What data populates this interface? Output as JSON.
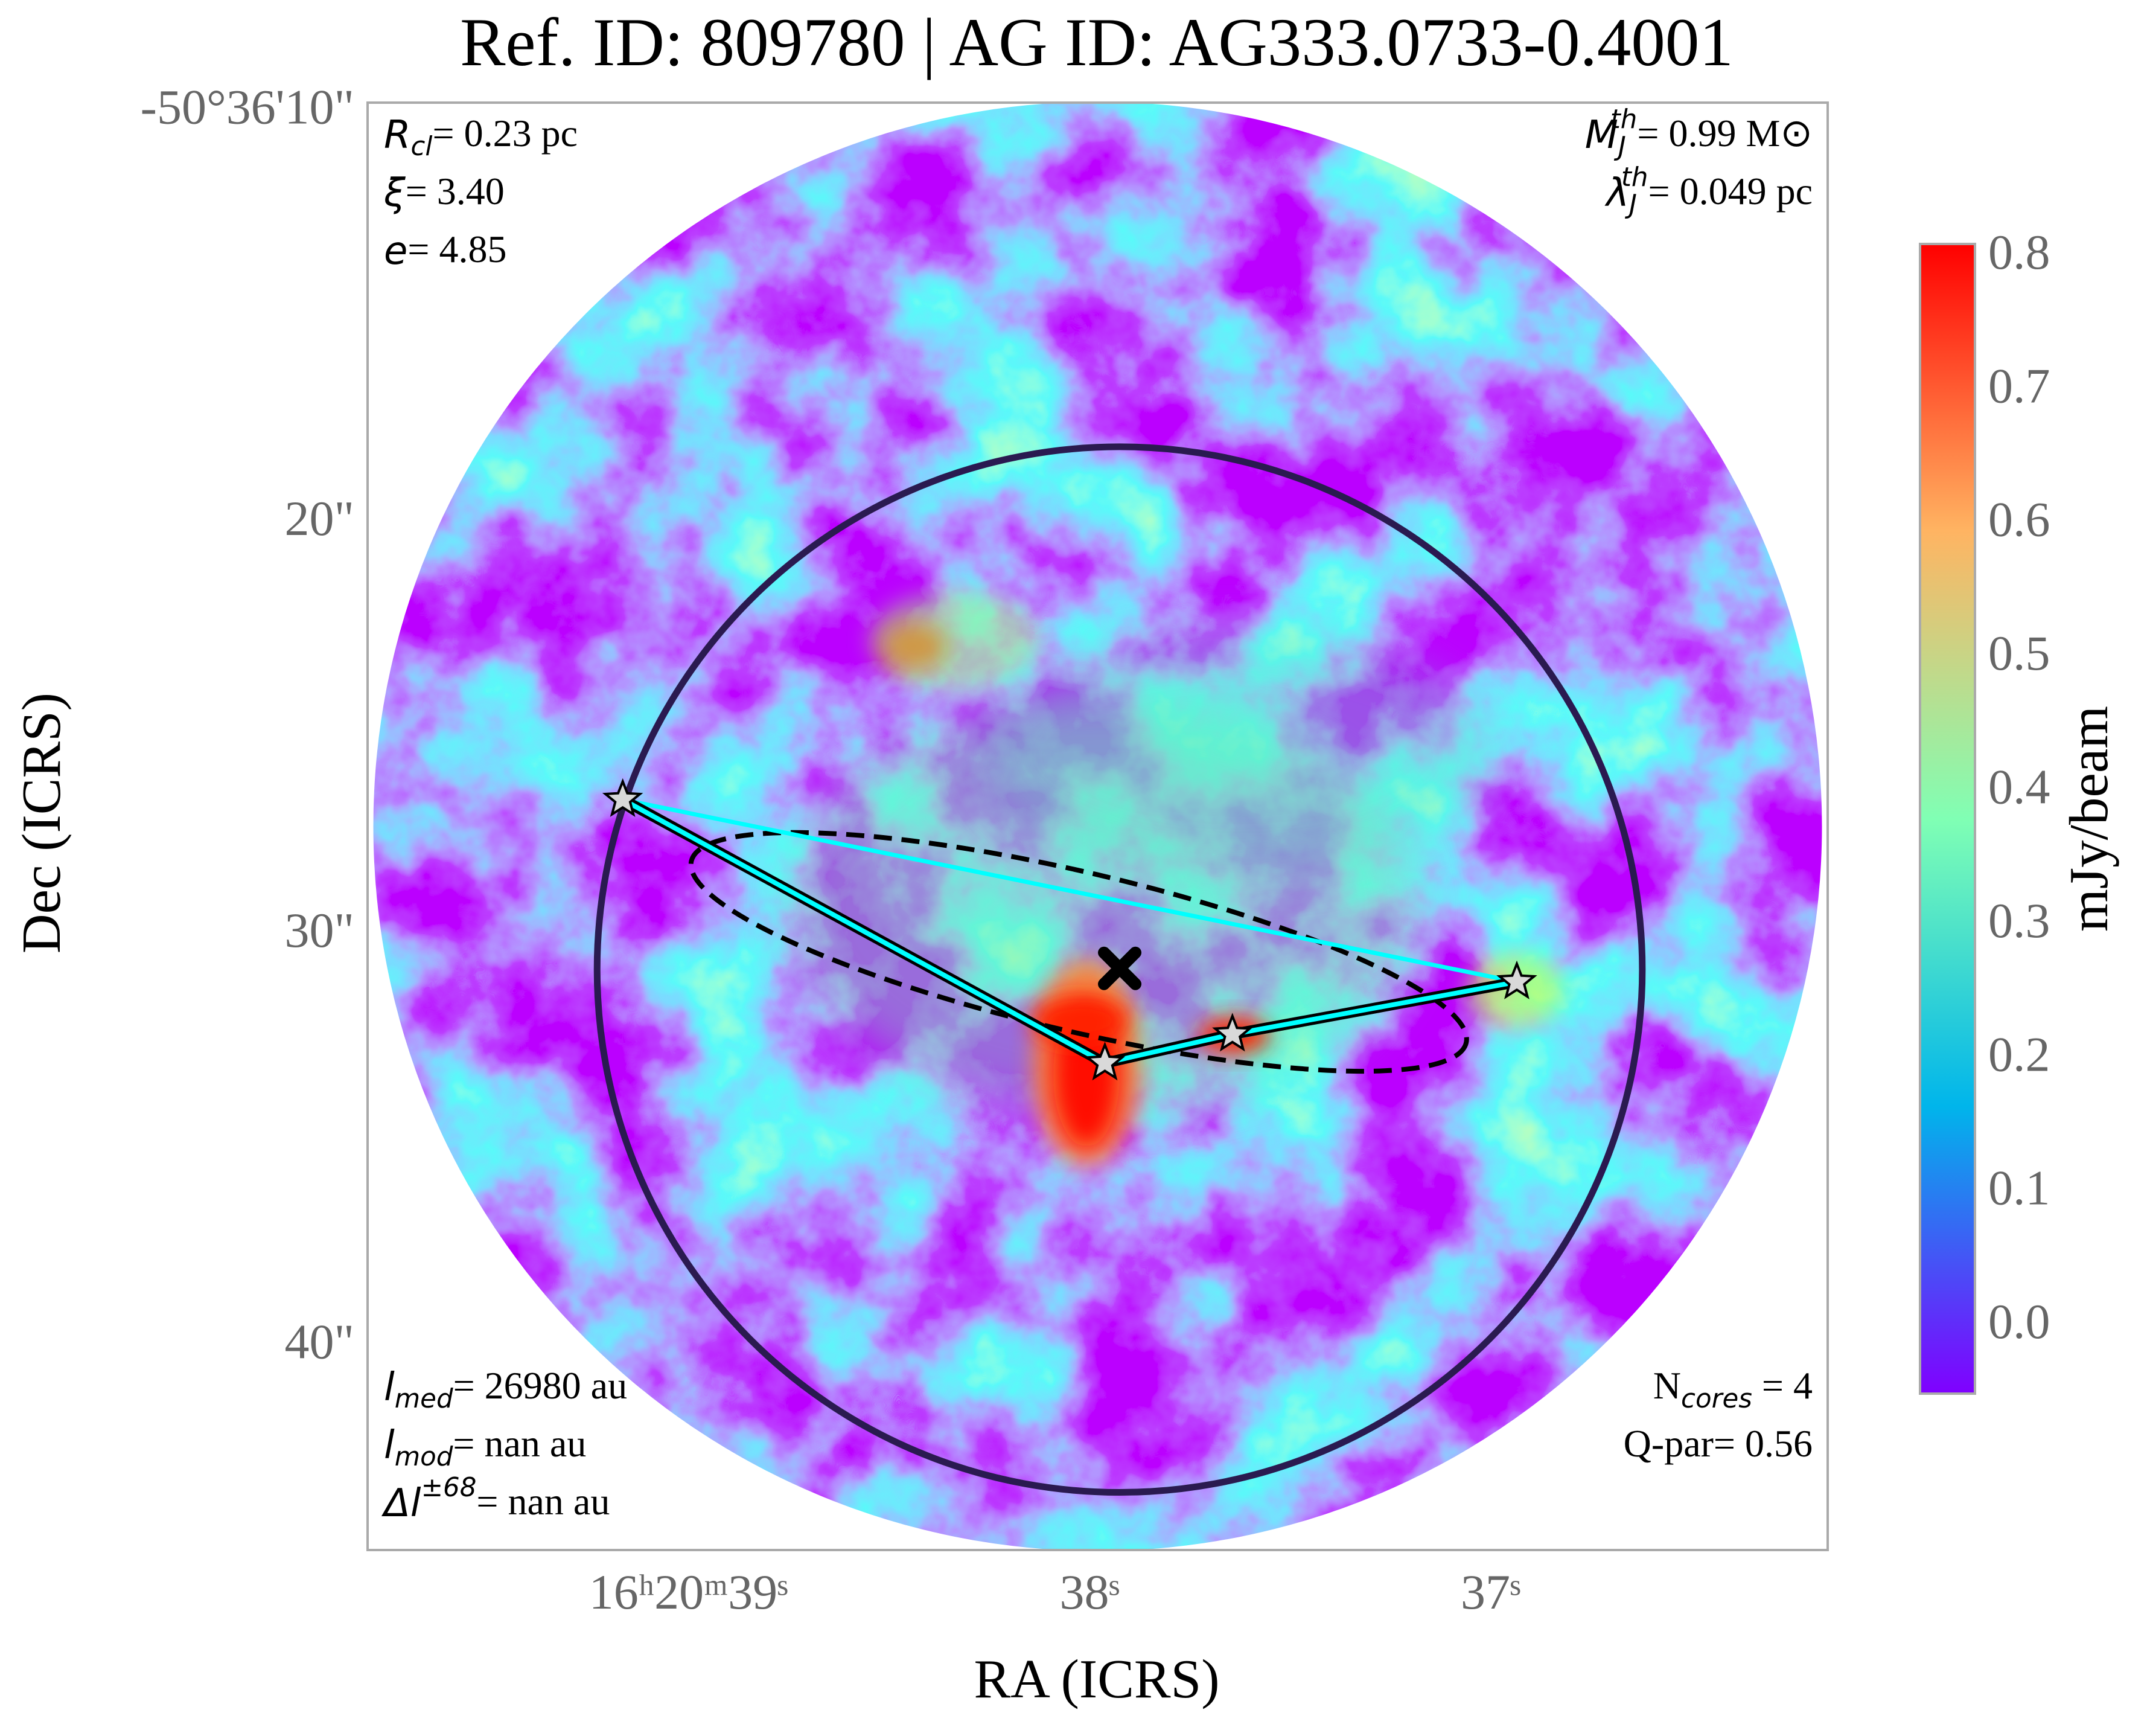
{
  "chart_data": {
    "type": "image",
    "title": "Ref. ID: 809780 | AG ID: AG333.0733-0.4001",
    "x_label": "RA (ICRS)",
    "y_label": "Dec (ICRS)",
    "xlim": [
      39.8,
      36.16
    ],
    "ylim": [
      44.93,
      9.77
    ],
    "xticks": [
      {
        "value": 39,
        "label": "16ʰ20ᵐ39ˢ"
      },
      {
        "value": 38,
        "label": "38ˢ"
      },
      {
        "value": 37,
        "label": "37ˢ"
      }
    ],
    "yticks": [
      {
        "value": 10,
        "label": "-50°36'10\""
      },
      {
        "value": 20,
        "label": "20\""
      },
      {
        "value": 30,
        "label": "30\""
      },
      {
        "value": 40,
        "label": "40\""
      }
    ],
    "colorbar": {
      "label": "mJy/beam",
      "colormap": "rainbow",
      "lim": [
        -0.05,
        0.81
      ],
      "ticks": [
        {
          "value": 0,
          "label": "0.0"
        },
        0.1,
        0.2,
        0.3,
        0.4,
        0.5,
        0.6,
        0.7,
        0.8
      ]
    },
    "cores": {
      "ra": [
        39.164,
        37.962,
        37.644,
        36.935
      ],
      "dec": [
        26.7,
        33.1,
        32.4,
        31.13
      ],
      "color": "#d9d9d9"
    },
    "mst_color": "#00ffff",
    "centroid": {
      "ra": 37.925,
      "dec": 30.8
    },
    "circle": {
      "ra": 37.925,
      "dec": 30.83,
      "radius": 12.7,
      "color": "#2a1a50"
    },
    "ellipse": {
      "ra": 38.027,
      "dec": 30.4,
      "semi_major": 9.67,
      "semi_minor": 1.93,
      "angle": 13.2
    },
    "annotations": {
      "top_left": [
        [
          {
            "t": "R",
            "s": "math"
          },
          {
            "t": "cl",
            "s": "sub"
          },
          {
            "t": "= 0.23 pc",
            "s": "roman"
          }
        ],
        [
          {
            "t": "ξ",
            "s": "math"
          },
          {
            "t": "= 3.40",
            "s": "roman"
          }
        ],
        [
          {
            "t": "e",
            "s": "math"
          },
          {
            "t": "= 4.85",
            "s": "roman"
          }
        ]
      ],
      "top_right": [
        [
          {
            "t": "M",
            "s": "math"
          },
          {
            "t": "J",
            "s": "sub"
          },
          {
            "t": "th",
            "s": "sup"
          },
          {
            "t": "= 0.99 M⊙",
            "s": "roman"
          }
        ],
        [
          {
            "t": "λ",
            "s": "math"
          },
          {
            "t": "J",
            "s": "sub"
          },
          {
            "t": "th",
            "s": "sup"
          },
          {
            "t": "= 0.049 pc",
            "s": "roman"
          }
        ]
      ],
      "bottom_left": [
        [
          {
            "t": "l",
            "s": "math"
          },
          {
            "t": "med",
            "s": "sub"
          },
          {
            "t": "= 26980 au",
            "s": "roman"
          }
        ],
        [
          {
            "t": "l",
            "s": "math"
          },
          {
            "t": "mod",
            "s": "sub"
          },
          {
            "t": "= nan au",
            "s": "roman"
          }
        ],
        [
          {
            "t": "Δl",
            "s": "math"
          },
          {
            "t": "±68",
            "s": "sup"
          },
          {
            "t": "= nan au",
            "s": "roman"
          }
        ]
      ],
      "bottom_right": [
        [
          {
            "t": "N",
            "s": "roman"
          },
          {
            "t": "cores",
            "s": "sub"
          },
          {
            "t": " = 4",
            "s": "roman"
          }
        ],
        [
          {
            "t": "Q-par= 0.56",
            "s": "roman"
          }
        ]
      ]
    }
  }
}
